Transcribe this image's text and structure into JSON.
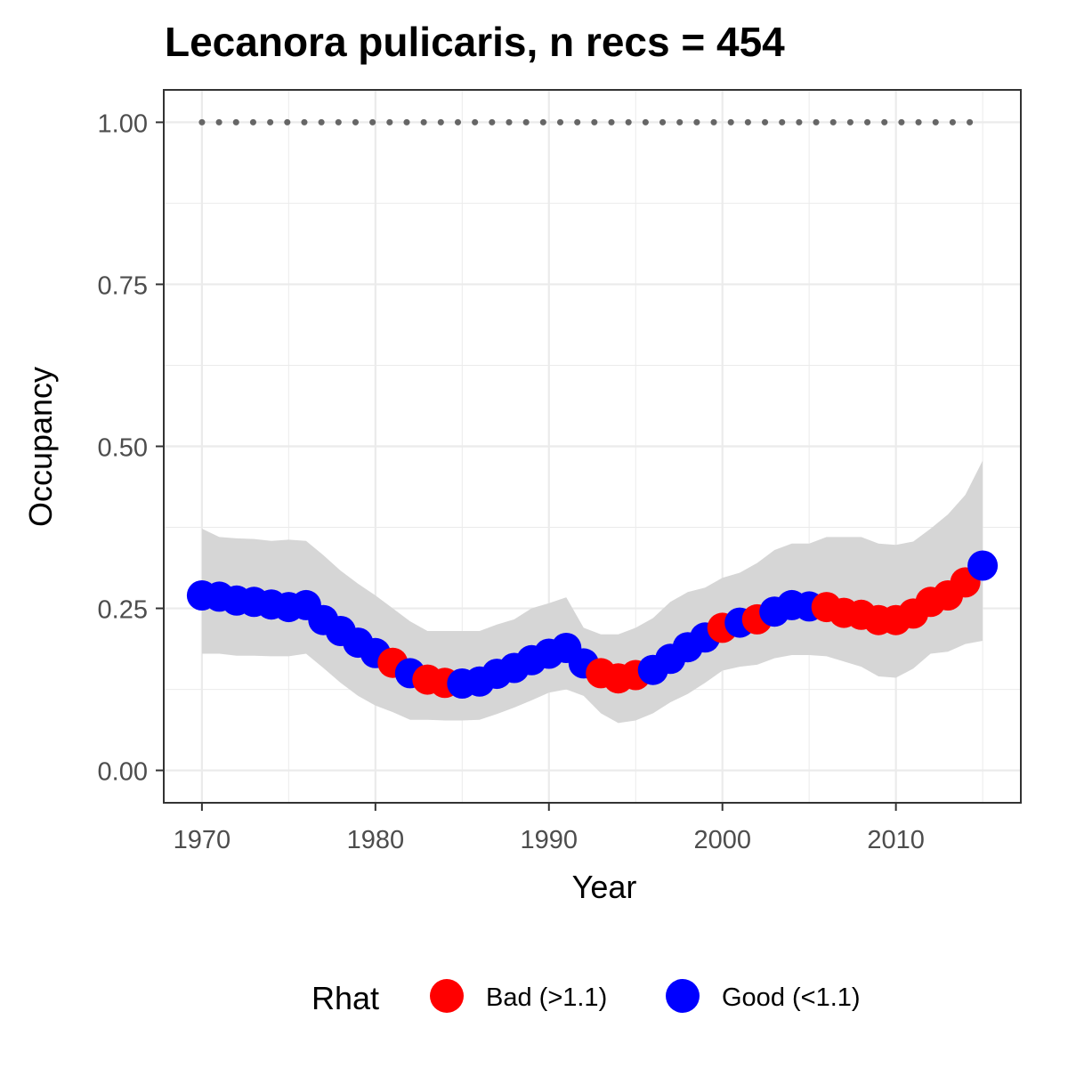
{
  "chart_data": {
    "type": "line",
    "title": "Lecanora pulicaris, n recs = 454",
    "xlabel": "Year",
    "ylabel": "Occupancy",
    "xlim": [
      1967.8,
      2017.2
    ],
    "ylim": [
      -0.05,
      1.05
    ],
    "x_ticks": [
      1970,
      1980,
      1990,
      2000,
      2010
    ],
    "x_tick_labels": [
      "1970",
      "1980",
      "1990",
      "2000",
      "2010"
    ],
    "y_ticks": [
      0,
      0.25,
      0.5,
      0.75,
      1
    ],
    "y_tick_labels": [
      "0.00",
      "0.25",
      "0.50",
      "0.75",
      "1.00"
    ],
    "grid": true,
    "x": [
      1970,
      1971,
      1972,
      1973,
      1974,
      1975,
      1976,
      1977,
      1978,
      1979,
      1980,
      1981,
      1982,
      1983,
      1984,
      1985,
      1986,
      1987,
      1988,
      1989,
      1990,
      1991,
      1992,
      1993,
      1994,
      1995,
      1996,
      1997,
      1998,
      1999,
      2000,
      2001,
      2002,
      2003,
      2004,
      2005,
      2006,
      2007,
      2008,
      2009,
      2010,
      2011,
      2012,
      2013,
      2014,
      2015
    ],
    "occupancy": [
      0.27,
      0.268,
      0.262,
      0.26,
      0.256,
      0.252,
      0.255,
      0.232,
      0.215,
      0.197,
      0.181,
      0.166,
      0.15,
      0.14,
      0.135,
      0.134,
      0.137,
      0.149,
      0.158,
      0.17,
      0.18,
      0.189,
      0.165,
      0.15,
      0.142,
      0.147,
      0.155,
      0.172,
      0.19,
      0.205,
      0.22,
      0.228,
      0.233,
      0.245,
      0.255,
      0.253,
      0.252,
      0.243,
      0.24,
      0.232,
      0.232,
      0.242,
      0.26,
      0.27,
      0.29,
      0.316
    ],
    "lower": [
      0.18,
      0.18,
      0.177,
      0.177,
      0.176,
      0.176,
      0.18,
      0.158,
      0.135,
      0.115,
      0.1,
      0.09,
      0.078,
      0.078,
      0.077,
      0.077,
      0.078,
      0.087,
      0.097,
      0.108,
      0.12,
      0.125,
      0.115,
      0.088,
      0.073,
      0.077,
      0.088,
      0.105,
      0.118,
      0.135,
      0.154,
      0.16,
      0.163,
      0.173,
      0.178,
      0.178,
      0.176,
      0.168,
      0.16,
      0.145,
      0.143,
      0.157,
      0.18,
      0.183,
      0.195,
      0.2
    ],
    "upper": [
      0.373,
      0.36,
      0.358,
      0.357,
      0.354,
      0.356,
      0.354,
      0.332,
      0.308,
      0.288,
      0.27,
      0.25,
      0.23,
      0.215,
      0.215,
      0.215,
      0.215,
      0.225,
      0.233,
      0.25,
      0.258,
      0.267,
      0.22,
      0.21,
      0.21,
      0.22,
      0.235,
      0.26,
      0.275,
      0.282,
      0.297,
      0.305,
      0.32,
      0.34,
      0.35,
      0.35,
      0.36,
      0.36,
      0.36,
      0.35,
      0.348,
      0.353,
      0.373,
      0.395,
      0.425,
      0.478
    ],
    "rhat": [
      "Good",
      "Good",
      "Good",
      "Good",
      "Good",
      "Good",
      "Good",
      "Good",
      "Good",
      "Good",
      "Good",
      "Bad",
      "Good",
      "Bad",
      "Bad",
      "Good",
      "Good",
      "Good",
      "Good",
      "Good",
      "Good",
      "Good",
      "Good",
      "Bad",
      "Bad",
      "Bad",
      "Good",
      "Good",
      "Good",
      "Good",
      "Bad",
      "Good",
      "Bad",
      "Good",
      "Good",
      "Good",
      "Bad",
      "Bad",
      "Bad",
      "Bad",
      "Bad",
      "Bad",
      "Bad",
      "Bad",
      "Bad",
      "Good"
    ],
    "reference_line_y": 1,
    "legend": {
      "title": "Rhat",
      "position": "bottom",
      "entries": [
        {
          "key": "Bad",
          "label": "Bad (>1.1)",
          "color": "#ff0000"
        },
        {
          "key": "Good",
          "label": "Good (<1.1)",
          "color": "#0000ff"
        }
      ]
    },
    "colors": {
      "ribbon": "#d6d6d6",
      "reference_line": "#666666",
      "grid": "#ebebeb",
      "panel_border": "#333333"
    }
  }
}
